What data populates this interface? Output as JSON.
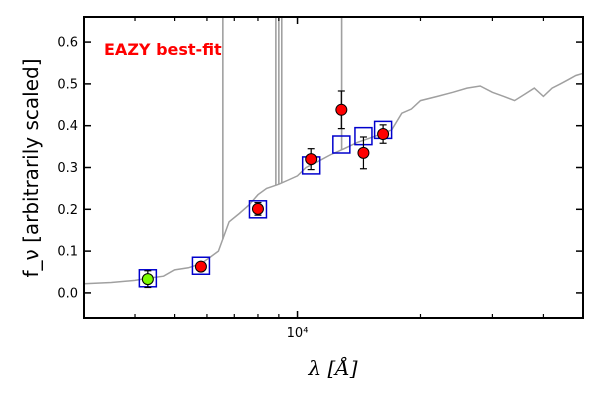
{
  "chart_data": {
    "type": "scatter",
    "annotation": "EAZY best-fit",
    "annotation_color": "#ff0000",
    "ylabel": "f_ν [arbitrarily scaled]",
    "xlabel": "λ [Å]",
    "x_scale": "log",
    "xlim": [
      3000,
      50000
    ],
    "ylim": [
      -0.06,
      0.66
    ],
    "yticks": [
      0.0,
      0.1,
      0.2,
      0.3,
      0.4,
      0.5,
      0.6
    ],
    "ytick_labels": [
      "0.0",
      "0.1",
      "0.2",
      "0.3",
      "0.4",
      "0.5",
      "0.6"
    ],
    "xtick_major": [
      10000
    ],
    "xtick_major_labels": [
      "10⁴"
    ],
    "xtick_minor": [
      4000,
      5000,
      6000,
      7000,
      8000,
      9000,
      20000,
      30000,
      40000
    ],
    "grid": false,
    "model_color": "#a0a0a0",
    "observed_color": "#ff0000",
    "special_point_color": "#7cfc00",
    "model_photometry_color": "#0000cc",
    "model_spectrum": {
      "x": [
        3000,
        3500,
        4000,
        4300,
        4700,
        5000,
        5400,
        5800,
        6100,
        6400,
        6800,
        7200,
        7600,
        8000,
        8400,
        8700,
        9000,
        9500,
        10000,
        10500,
        11000,
        12000,
        13000,
        14000,
        15000,
        16000,
        17000,
        18000,
        19000,
        20000,
        22000,
        24000,
        26000,
        28000,
        30000,
        32000,
        34000,
        36000,
        38000,
        40000,
        42000,
        44000,
        46000,
        48000,
        50000
      ],
      "y": [
        0.022,
        0.025,
        0.03,
        0.035,
        0.04,
        0.055,
        0.06,
        0.07,
        0.085,
        0.1,
        0.17,
        0.19,
        0.21,
        0.235,
        0.25,
        0.255,
        0.26,
        0.27,
        0.28,
        0.3,
        0.31,
        0.33,
        0.345,
        0.36,
        0.37,
        0.38,
        0.39,
        0.43,
        0.44,
        0.46,
        0.47,
        0.48,
        0.49,
        0.495,
        0.48,
        0.47,
        0.46,
        0.475,
        0.49,
        0.47,
        0.49,
        0.5,
        0.51,
        0.52,
        0.525
      ]
    },
    "emission_lines": [
      {
        "x": 6563,
        "top": 0.66
      },
      {
        "x": 8850,
        "top": 0.66
      },
      {
        "x": 9000,
        "top": 0.66
      },
      {
        "x": 9150,
        "top": 0.66
      },
      {
        "x": 12820,
        "top": 0.66
      }
    ],
    "model_photometry": {
      "x": [
        4300,
        5800,
        8000,
        10800,
        12800,
        14500,
        16200
      ],
      "y": [
        0.035,
        0.065,
        0.2,
        0.305,
        0.355,
        0.375,
        0.39
      ]
    },
    "observed": [
      {
        "x": 4300,
        "y": 0.033,
        "err": 0.02,
        "special": true
      },
      {
        "x": 5800,
        "y": 0.063,
        "err": 0.0
      },
      {
        "x": 8000,
        "y": 0.201,
        "err": 0.015
      },
      {
        "x": 10800,
        "y": 0.32,
        "err": 0.025
      },
      {
        "x": 12800,
        "y": 0.438,
        "err": 0.045
      },
      {
        "x": 14500,
        "y": 0.335,
        "err": 0.038
      },
      {
        "x": 16200,
        "y": 0.38,
        "err": 0.022
      }
    ]
  }
}
